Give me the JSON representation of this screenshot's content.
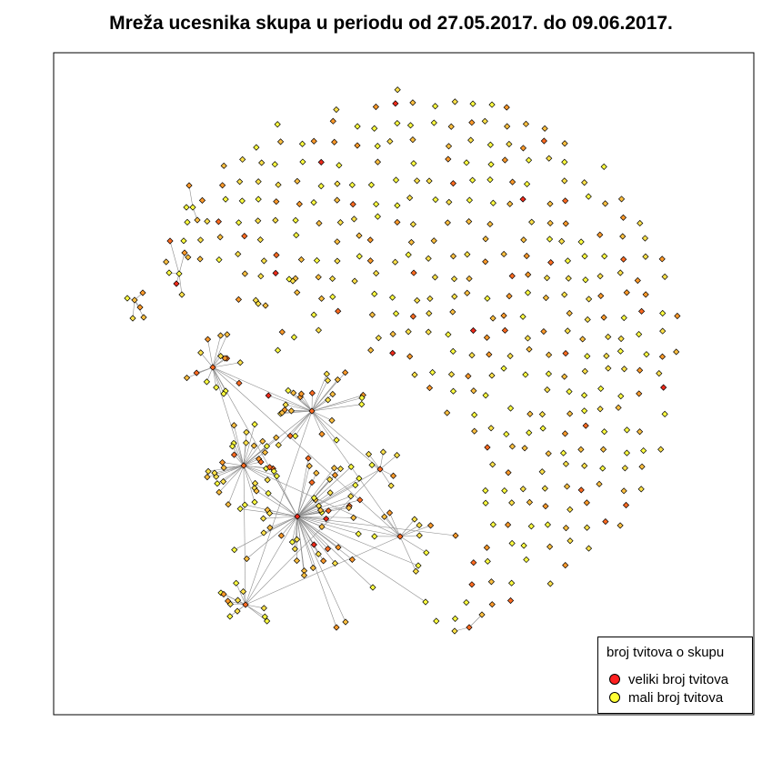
{
  "chart_data": {
    "type": "network",
    "title": "Mreža ucesnika skupa u periodu od 27.05.2017. do 09.06.2017.",
    "legend": {
      "title": "broj tvitova o skupu",
      "placement": "bottom-right",
      "items": [
        {
          "label": "veliki broj tvitova",
          "color": "#ff2020"
        },
        {
          "label": "mali broj tvitova",
          "color": "#ffff33"
        }
      ]
    },
    "node_colors": [
      "#ffff40",
      "#ffe24a",
      "#ffc040",
      "#ff9a2a",
      "#ff6a20",
      "#ee2a1a"
    ],
    "edge_color": "#8c8c8c",
    "node_border_color": "#000000"
  }
}
